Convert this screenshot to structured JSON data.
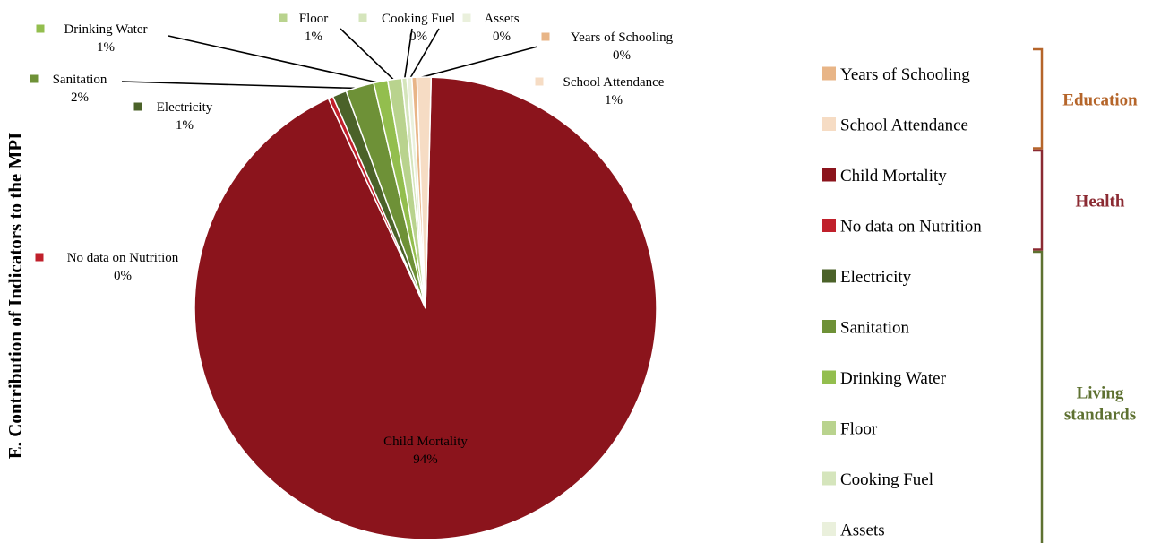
{
  "chart_data": {
    "type": "pie",
    "title": "E. Contribution of Indicators to the MPI",
    "slices": [
      {
        "label": "Child Mortality",
        "value": 94,
        "pct_label": "94%",
        "color": "#8B141C"
      },
      {
        "label": "No data on Nutrition",
        "value": 0,
        "pct_label": "0%",
        "color": "#C0202B"
      },
      {
        "label": "Electricity",
        "value": 1,
        "pct_label": "1%",
        "color": "#4B6229"
      },
      {
        "label": "Sanitation",
        "value": 2,
        "pct_label": "2%",
        "color": "#6E9137"
      },
      {
        "label": "Drinking Water",
        "value": 1,
        "pct_label": "1%",
        "color": "#93BE4E"
      },
      {
        "label": "Floor",
        "value": 1,
        "pct_label": "1%",
        "color": "#B9D38E"
      },
      {
        "label": "Cooking Fuel",
        "value": 0,
        "pct_label": "0%",
        "color": "#D5E5BC"
      },
      {
        "label": "Assets",
        "value": 0,
        "pct_label": "0%",
        "color": "#EAF0DC"
      },
      {
        "label": "Years of Schooling",
        "value": 0,
        "pct_label": "0%",
        "color": "#E8B587"
      },
      {
        "label": "School Attendance",
        "value": 1,
        "pct_label": "1%",
        "color": "#F6DCC4"
      }
    ],
    "legend_position": "right",
    "legend_order": [
      "Years of Schooling",
      "School Attendance",
      "Child Mortality",
      "No data on Nutrition",
      "Electricity",
      "Sanitation",
      "Drinking Water",
      "Floor",
      "Cooking Fuel",
      "Assets"
    ],
    "groups": [
      {
        "label": "Education",
        "members": [
          "Years of Schooling",
          "School Attendance"
        ],
        "color": "#B5652A"
      },
      {
        "label": "Health",
        "members": [
          "Child Mortality",
          "No data on Nutrition"
        ],
        "color": "#8B2A32"
      },
      {
        "label": "Living standards",
        "members": [
          "Electricity",
          "Sanitation",
          "Drinking Water",
          "Floor",
          "Cooking Fuel",
          "Assets"
        ],
        "color": "#5E7131"
      }
    ]
  }
}
